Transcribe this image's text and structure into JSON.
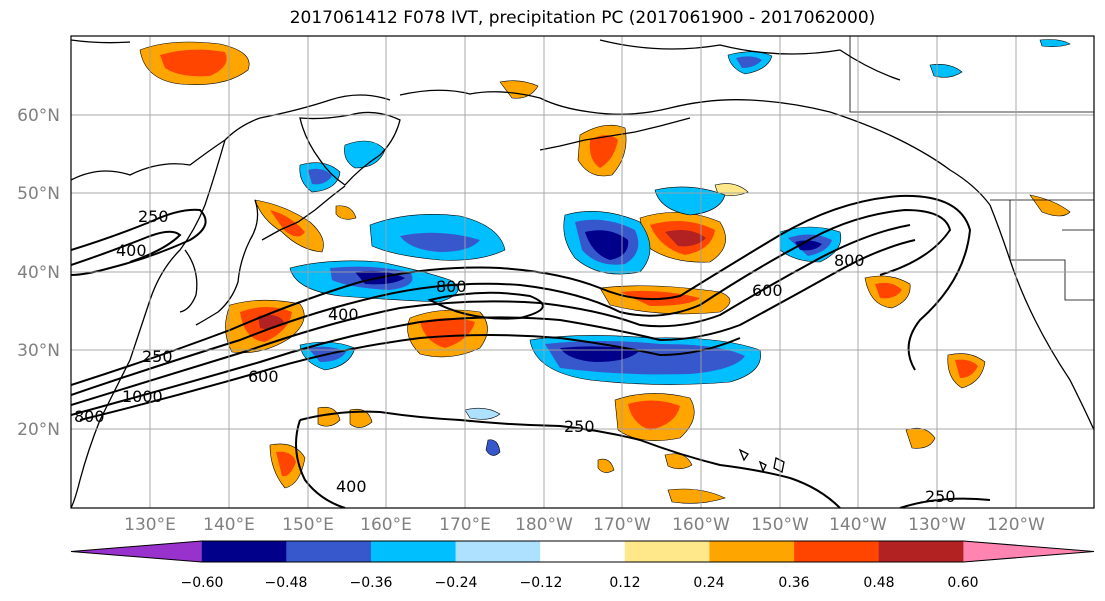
{
  "title": "2017061412 F078 IVT, precipitation PC (2017061900 - 2017062000)",
  "lat_ticks": [
    "60°N",
    "50°N",
    "40°N",
    "30°N",
    "20°N"
  ],
  "lon_ticks": [
    "130°E",
    "140°E",
    "150°E",
    "160°E",
    "170°E",
    "180°W",
    "170°W",
    "160°W",
    "150°W",
    "140°W",
    "130°W",
    "120°W"
  ],
  "colorbar": {
    "colors": [
      "#9932CC",
      "#00008B",
      "#3658CC",
      "#00BFFF",
      "#ADE1FF",
      "#FFFFFF",
      "#FFE88A",
      "#FFA500",
      "#FF4500",
      "#B22222",
      "#FF85B0"
    ],
    "tick_labels": [
      "−0.60",
      "−0.48",
      "−0.36",
      "−0.24",
      "−0.12",
      "0.12",
      "0.24",
      "0.36",
      "0.48",
      "0.60"
    ]
  },
  "ivt_contour_labels": [
    "250",
    "400",
    "250",
    "1000",
    "800",
    "600",
    "400",
    "800",
    "600",
    "800",
    "250",
    "400",
    "250"
  ]
}
